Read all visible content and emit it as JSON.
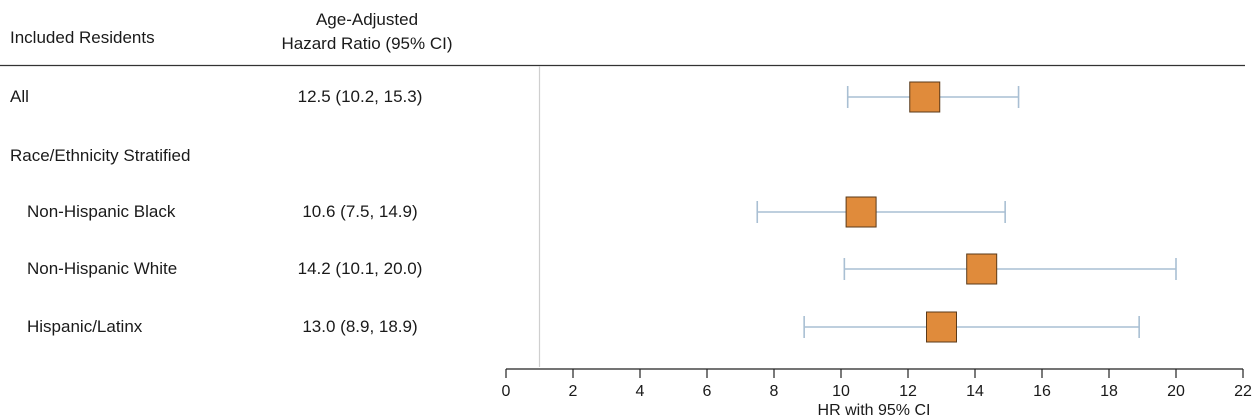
{
  "table": {
    "col1_header": "Included Residents",
    "col2_header_line1": "Age-Adjusted",
    "col2_header_line2": "Hazard Ratio (95% CI)",
    "rows": [
      {
        "label": "All",
        "value": "12.5 (10.2, 15.3)",
        "indent": false
      },
      {
        "label": "Race/Ethnicity Stratified",
        "value": "",
        "indent": false
      },
      {
        "label": "Non-Hispanic Black",
        "value": "10.6 (7.5, 14.9)",
        "indent": true
      },
      {
        "label": "Non-Hispanic White",
        "value": "14.2 (10.1, 20.0)",
        "indent": true
      },
      {
        "label": "Hispanic/Latinx",
        "value": "13.0 (8.9, 18.9)",
        "indent": true
      }
    ]
  },
  "chart_data": {
    "type": "forest",
    "xlabel": "HR with 95% CI",
    "xlim": [
      0,
      22
    ],
    "xticks": [
      0,
      2,
      4,
      6,
      8,
      10,
      12,
      14,
      16,
      18,
      20,
      22
    ],
    "reference_line": 1,
    "points": [
      {
        "label": "All",
        "hr": 12.5,
        "lower": 10.2,
        "upper": 15.3
      },
      {
        "label": "Non-Hispanic Black",
        "hr": 10.6,
        "lower": 7.5,
        "upper": 14.9
      },
      {
        "label": "Non-Hispanic White",
        "hr": 14.2,
        "lower": 10.1,
        "upper": 20.0
      },
      {
        "label": "Hispanic/Latinx",
        "hr": 13.0,
        "lower": 8.9,
        "upper": 18.9
      }
    ],
    "colors": {
      "marker_fill": "#E08B3B",
      "marker_stroke": "#5a3a1a",
      "ci_line": "#A9BFD3",
      "axis": "#222222",
      "ref_line": "#cfcfcf"
    }
  }
}
